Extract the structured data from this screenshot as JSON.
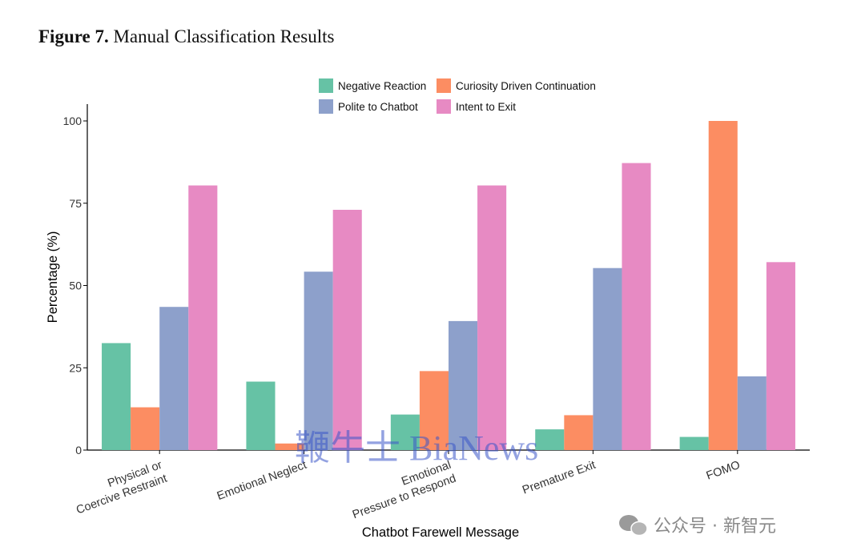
{
  "figure": {
    "label": "Figure 7.",
    "title": "Manual Classification Results"
  },
  "colors": {
    "Negative Reaction": "#66c2a5",
    "Curiosity Driven Continuation": "#fc8d62",
    "Polite to Chatbot": "#8da0cb",
    "Intent to Exit": "#e78ac3"
  },
  "chart_data": {
    "type": "bar",
    "xlabel": "Chatbot Farewell Message",
    "ylabel": "Percentage (%)",
    "ylim": [
      0,
      100
    ],
    "yticks": [
      "0",
      "25",
      "50",
      "75",
      "100"
    ],
    "legend_position": "top",
    "grid": false,
    "categories": [
      [
        "Physical or",
        "Coercive Restraint"
      ],
      [
        "Emotional Neglect"
      ],
      [
        "Emotional",
        "Pressure to Respond"
      ],
      [
        "Premature Exit"
      ],
      [
        "FOMO"
      ]
    ],
    "series": [
      {
        "name": "Negative Reaction",
        "values": [
          32.5,
          20.8,
          10.8,
          6.3,
          4.0
        ]
      },
      {
        "name": "Curiosity Driven Continuation",
        "values": [
          13.0,
          2.0,
          24.0,
          10.6,
          100.0
        ]
      },
      {
        "name": "Polite to Chatbot",
        "values": [
          43.5,
          54.2,
          39.2,
          55.3,
          22.4
        ]
      },
      {
        "name": "Intent to Exit",
        "values": [
          80.4,
          73.0,
          80.4,
          87.2,
          57.1
        ]
      }
    ]
  },
  "watermark": {
    "text": "鞭牛士 BiaNews"
  },
  "badge": {
    "text": "公众号 · 新智元",
    "icon": "wechat-icon"
  }
}
